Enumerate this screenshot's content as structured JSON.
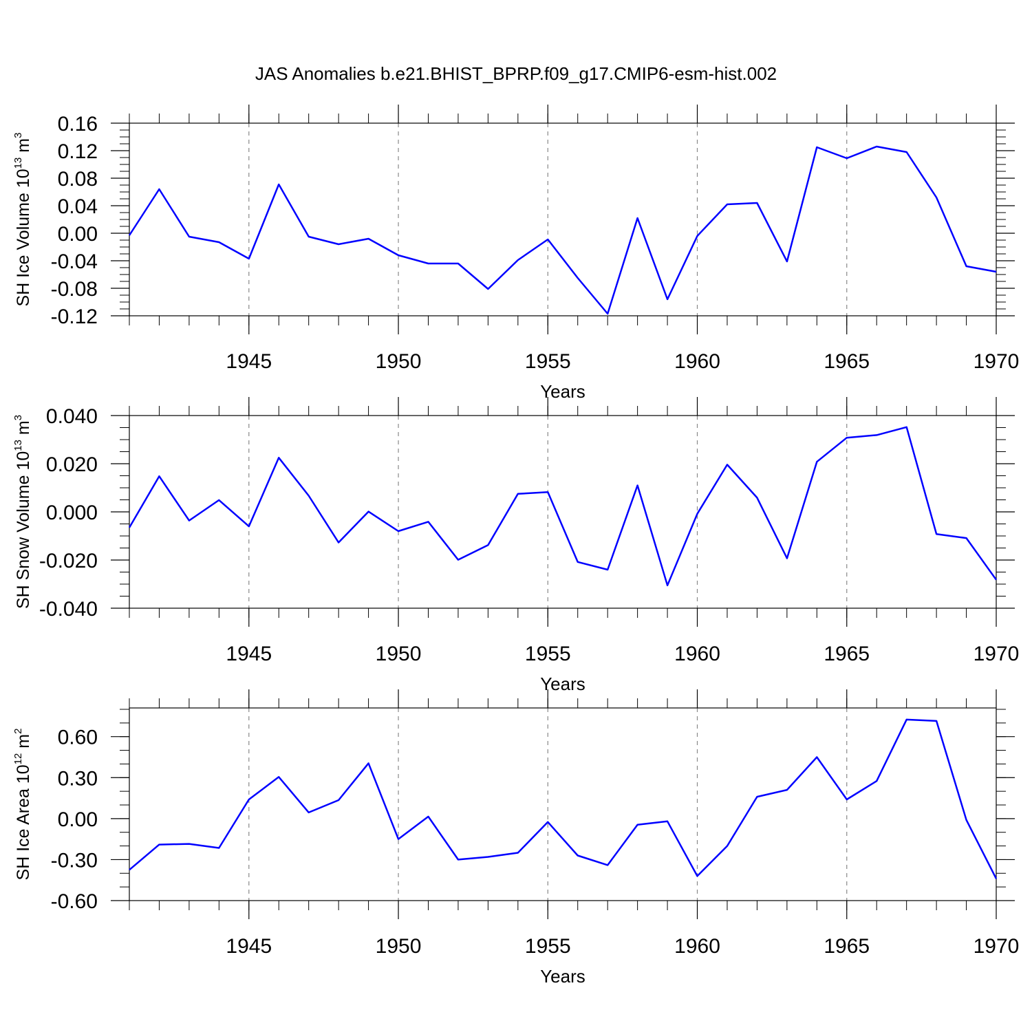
{
  "figure": {
    "title": "JAS Anomalies b.e21.BHIST_BPRP.f09_g17.CMIP6-esm-hist.002"
  },
  "line_color": "#0000ff",
  "chart_data": [
    {
      "type": "line",
      "name": "ice-volume",
      "ylabel": "SH Ice Volume 10",
      "ylabel_exp": "13",
      "ylabel_unit": " m",
      "ylabel_unit_exp": "3",
      "xlabel": "Years",
      "xlim": [
        1941,
        1970
      ],
      "ylim": [
        -0.12,
        0.16
      ],
      "yticks": [
        -0.12,
        -0.08,
        -0.04,
        0.0,
        0.04,
        0.08,
        0.12,
        0.16
      ],
      "ytick_labels": [
        "-0.12",
        "-0.08",
        "-0.04",
        "0.00",
        "0.04",
        "0.08",
        "0.12",
        "0.16"
      ],
      "xticks": [
        1945,
        1950,
        1955,
        1960,
        1965,
        1970
      ],
      "xtick_labels": [
        "1945",
        "1950",
        "1955",
        "1960",
        "1965",
        "1970"
      ],
      "grid_x": true,
      "x": [
        1941,
        1942,
        1943,
        1944,
        1945,
        1946,
        1947,
        1948,
        1949,
        1950,
        1951,
        1952,
        1953,
        1954,
        1955,
        1956,
        1957,
        1958,
        1959,
        1960,
        1961,
        1962,
        1963,
        1964,
        1965,
        1966,
        1967,
        1968,
        1969,
        1970
      ],
      "y": [
        -0.003,
        0.064,
        -0.005,
        -0.013,
        -0.037,
        0.071,
        -0.005,
        -0.016,
        -0.008,
        -0.032,
        -0.044,
        -0.044,
        -0.081,
        -0.039,
        -0.009,
        -0.065,
        -0.117,
        0.022,
        -0.096,
        -0.004,
        0.042,
        0.044,
        -0.041,
        0.125,
        0.109,
        0.126,
        0.118,
        0.052,
        -0.048,
        -0.056
      ]
    },
    {
      "type": "line",
      "name": "snow-volume",
      "ylabel": "SH Snow Volume 10",
      "ylabel_exp": "13",
      "ylabel_unit": " m",
      "ylabel_unit_exp": "3",
      "xlabel": "Years",
      "xlim": [
        1941,
        1970
      ],
      "ylim": [
        -0.04,
        0.04
      ],
      "yticks": [
        -0.04,
        -0.02,
        0.0,
        0.02,
        0.04
      ],
      "ytick_labels": [
        "-0.040",
        "-0.020",
        "0.000",
        "0.020",
        "0.040"
      ],
      "xticks": [
        1945,
        1950,
        1955,
        1960,
        1965,
        1970
      ],
      "xtick_labels": [
        "1945",
        "1950",
        "1955",
        "1960",
        "1965",
        "1970"
      ],
      "grid_x": true,
      "x": [
        1941,
        1942,
        1943,
        1944,
        1945,
        1946,
        1947,
        1948,
        1949,
        1950,
        1951,
        1952,
        1953,
        1954,
        1955,
        1956,
        1957,
        1958,
        1959,
        1960,
        1961,
        1962,
        1963,
        1964,
        1965,
        1966,
        1967,
        1968,
        1969,
        1970
      ],
      "y": [
        -0.0065,
        0.0148,
        -0.0036,
        0.0049,
        -0.006,
        0.0225,
        0.0067,
        -0.0127,
        0.0001,
        -0.008,
        -0.0041,
        -0.0199,
        -0.0138,
        0.0075,
        0.0082,
        -0.0208,
        -0.024,
        0.011,
        -0.0305,
        -0.0008,
        0.0196,
        0.0059,
        -0.0193,
        0.0208,
        0.0308,
        0.0319,
        0.0352,
        -0.0092,
        -0.0109,
        -0.0282
      ]
    },
    {
      "type": "line",
      "name": "ice-area",
      "ylabel": "SH Ice Area 10",
      "ylabel_exp": "12",
      "ylabel_unit": " m",
      "ylabel_unit_exp": "2",
      "xlabel": "Years",
      "xlim": [
        1941,
        1970
      ],
      "ylim": [
        -0.6,
        0.81
      ],
      "yticks": [
        -0.6,
        -0.3,
        0.0,
        0.3,
        0.6
      ],
      "ytick_labels": [
        "-0.60",
        "-0.30",
        "0.00",
        "0.30",
        "0.60"
      ],
      "xticks": [
        1945,
        1950,
        1955,
        1960,
        1965,
        1970
      ],
      "xtick_labels": [
        "1945",
        "1950",
        "1955",
        "1960",
        "1965",
        "1970"
      ],
      "grid_x": true,
      "x": [
        1941,
        1942,
        1943,
        1944,
        1945,
        1946,
        1947,
        1948,
        1949,
        1950,
        1951,
        1952,
        1953,
        1954,
        1955,
        1956,
        1957,
        1958,
        1959,
        1960,
        1961,
        1962,
        1963,
        1964,
        1965,
        1966,
        1967,
        1968,
        1969,
        1970
      ],
      "y": [
        -0.375,
        -0.19,
        -0.185,
        -0.215,
        0.14,
        0.305,
        0.045,
        0.135,
        0.405,
        -0.15,
        0.015,
        -0.3,
        -0.28,
        -0.25,
        -0.025,
        -0.27,
        -0.34,
        -0.045,
        -0.02,
        -0.42,
        -0.2,
        0.16,
        0.21,
        0.45,
        0.14,
        0.275,
        0.725,
        0.715,
        -0.01,
        -0.44
      ]
    }
  ]
}
